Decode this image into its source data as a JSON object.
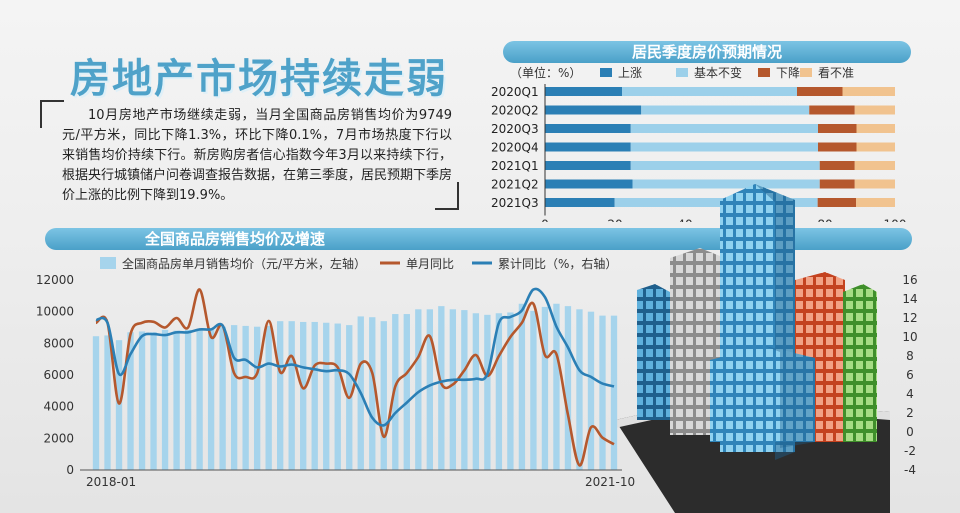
{
  "headline": "房地产市场持续走弱",
  "paragraph": "10月房地产市场继续走弱，当月全国商品房销售均价为9749元/平方米，同比下降1.3%，环比下降0.1%，7月市场热度下行以来销售均价持续下行。新房购房者信心指数今年3月以来持续下行，根据央行城镇储户问卷调查报告数据，在第三季度，居民预期下季房价上涨的比例下降到19.9%。",
  "colors": {
    "accent": "#4fa2c9",
    "rise": "#2b7fb5",
    "flat": "#9cd0ea",
    "fall": "#b5582d",
    "unsure": "#f1c38f",
    "bars": "#a6d4ec",
    "line_monthly": "#b5582d",
    "line_cumulative": "#2b7fb5"
  },
  "chart_data": [
    {
      "type": "bar",
      "stacked": true,
      "orientation": "horizontal",
      "title": "居民季度房价预期情况",
      "unit_label": "（单位：%）",
      "categories": [
        "2020Q1",
        "2020Q2",
        "2020Q3",
        "2020Q4",
        "2021Q1",
        "2021Q2",
        "2021Q3"
      ],
      "series": [
        {
          "name": "上涨",
          "values": [
            22,
            27.5,
            24.5,
            24.5,
            24.5,
            25,
            19.9
          ]
        },
        {
          "name": "基本不变",
          "values": [
            50,
            48,
            53.5,
            53.5,
            54,
            53.5,
            58
          ]
        },
        {
          "name": "下降",
          "values": [
            13,
            13,
            11,
            11,
            10,
            10,
            11
          ]
        },
        {
          "name": "看不准",
          "values": [
            15,
            11.5,
            11,
            11,
            11.5,
            11.5,
            11.1
          ]
        }
      ],
      "x_ticks": [
        "0",
        "20",
        "40",
        "60",
        "80",
        "100"
      ],
      "xlim": [
        0,
        100
      ],
      "legend_position": "top"
    },
    {
      "type": "bar",
      "title": "全国商品房销售均价及增速",
      "x_start_label": "2018-01",
      "x_end_label": "2021-10",
      "y_left_ticks": [
        "0",
        "2000",
        "4000",
        "6000",
        "8000",
        "10000",
        "12000"
      ],
      "y_right_ticks": [
        "-4",
        "-2",
        "0",
        "2",
        "4",
        "6",
        "8",
        "10",
        "12",
        "14",
        "16"
      ],
      "y_left_lim": [
        0,
        12000
      ],
      "y_right_lim": [
        -4,
        16
      ],
      "legend": [
        "全国商品房单月销售均价（元/平方米，左轴）",
        "单月同比",
        "累计同比（%，右轴）"
      ],
      "bar_values": [
        8450,
        8500,
        8200,
        8700,
        8750,
        8700,
        8850,
        8800,
        8850,
        8900,
        8950,
        9050,
        9150,
        9100,
        9050,
        9100,
        9400,
        9400,
        9350,
        9350,
        9300,
        9250,
        9150,
        9700,
        9650,
        9400,
        9850,
        9850,
        10150,
        10150,
        10350,
        10150,
        10100,
        9900,
        9800,
        9900,
        9950,
        10500,
        10050,
        10300,
        10500,
        10350,
        10150,
        10000,
        9750,
        9749
      ],
      "monthly_yoy": [
        11.5,
        11.5,
        3.0,
        10.3,
        11.5,
        11.6,
        11.0,
        12.0,
        11.0,
        15.0,
        10.0,
        11.2,
        6.2,
        5.8,
        6.2,
        11.7,
        6.3,
        8.0,
        4.6,
        7.0,
        7.2,
        6.8,
        3.6,
        7.2,
        6.2,
        -0.5,
        4.8,
        6.2,
        7.9,
        10.1,
        5.1,
        5.0,
        6.5,
        8.1,
        5.9,
        8.0,
        10.0,
        11.5,
        13.5,
        8.1,
        8.2,
        1.8,
        -3.5,
        0.5,
        -0.6,
        -1.3
      ],
      "cumulative_yoy": [
        11.8,
        11.5,
        6.1,
        8.2,
        10.1,
        10.3,
        10.2,
        10.5,
        10.5,
        10.8,
        10.8,
        11.2,
        7.8,
        7.6,
        6.8,
        7.2,
        6.9,
        7.1,
        6.8,
        6.6,
        6.4,
        6.5,
        6.1,
        4.1,
        1.5,
        0.7,
        2.0,
        3.1,
        4.2,
        4.9,
        5.3,
        5.5,
        5.5,
        5.6,
        6.1,
        11.5,
        12.1,
        12.8,
        15.0,
        14.2,
        11.1,
        8.9,
        6.5,
        5.8,
        5.1,
        4.8
      ]
    }
  ]
}
